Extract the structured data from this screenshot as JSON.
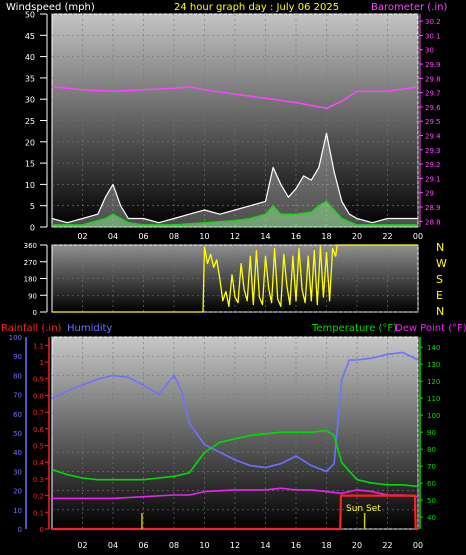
{
  "header": {
    "windspeed_label": "Windspeed (mph)",
    "title": "24 hour graph day : July 06 2025",
    "barometer_label": "Barometer (.in)"
  },
  "colors": {
    "axis_white": "#ffffff",
    "barometer": "#ff44ff",
    "wind": "#ffffff",
    "wind_avg": "#22cc22",
    "direction": "#ffff00",
    "rain": "#ff2020",
    "humidity": "#7070ff",
    "temperature": "#00dd00",
    "dewpoint": "#ee22ee",
    "title": "#ffff00"
  },
  "chart_data": [
    {
      "type": "line",
      "name": "wind-barometer",
      "title": "24 hour graph day : July 06 2025",
      "x_ticks": [
        "02",
        "04",
        "06",
        "08",
        "10",
        "12",
        "14",
        "16",
        "18",
        "20",
        "22",
        "00"
      ],
      "y_left": {
        "label": "Windspeed (mph)",
        "ticks": [
          "0",
          "5",
          "10",
          "15",
          "20",
          "25",
          "30",
          "35",
          "40",
          "45",
          "50"
        ],
        "range": [
          0,
          50
        ]
      },
      "y_right": {
        "label": "Barometer (.in)",
        "ticks": [
          "28.8",
          "28.9",
          "29",
          "29.1",
          "29.2",
          "29.3",
          "29.4",
          "29.5",
          "29.6",
          "29.7",
          "29.8",
          "29.9",
          "30",
          "30.1",
          "30.2"
        ],
        "range": [
          28.76,
          30.25
        ]
      },
      "barometer": {
        "hours": [
          0,
          2,
          4,
          6,
          8,
          9,
          10,
          12,
          14,
          16,
          17,
          18,
          19,
          20,
          22,
          24
        ],
        "values": [
          29.74,
          29.72,
          29.71,
          29.72,
          29.73,
          29.74,
          29.72,
          29.69,
          29.66,
          29.63,
          29.61,
          29.59,
          29.64,
          29.71,
          29.71,
          29.74
        ]
      },
      "wind_gust": {
        "hours": [
          0,
          1,
          2,
          3,
          3.5,
          4,
          4.5,
          5,
          6,
          7,
          8,
          9,
          10,
          11,
          12,
          13,
          14,
          14.5,
          15,
          15.5,
          16,
          16.5,
          17,
          17.5,
          18,
          18.5,
          19,
          19.5,
          20,
          21,
          22,
          23,
          24
        ],
        "values": [
          2,
          1,
          2,
          3,
          7,
          10,
          5,
          2,
          2,
          1,
          2,
          3,
          4,
          3,
          4,
          5,
          6,
          14,
          10,
          7,
          9,
          12,
          11,
          14,
          22,
          13,
          6,
          3,
          2,
          1,
          2,
          2,
          2
        ]
      },
      "wind_avg": {
        "hours": [
          0,
          2,
          3.5,
          4,
          5,
          6,
          8,
          10,
          12,
          13,
          14,
          14.5,
          15,
          16,
          17,
          17.5,
          18,
          18.5,
          19,
          20,
          21,
          22,
          24
        ],
        "values": [
          0.5,
          0.5,
          2,
          3,
          1,
          0.5,
          0.5,
          1,
          1.5,
          2,
          3,
          5,
          3,
          3,
          3.5,
          5,
          6,
          4,
          2,
          0.5,
          0.5,
          0.5,
          0.5
        ]
      }
    },
    {
      "type": "line",
      "name": "wind-direction",
      "y_left": {
        "ticks": [
          "0",
          "90",
          "180",
          "270",
          "360"
        ],
        "range": [
          0,
          360
        ]
      },
      "y_right_labels": [
        "N",
        "W",
        "S",
        "E",
        "N"
      ],
      "direction": {
        "hours": [
          0,
          9.9,
          10.0,
          10.2,
          10.4,
          10.6,
          10.8,
          11.0,
          11.2,
          11.4,
          11.6,
          11.8,
          12.0,
          12.2,
          12.4,
          12.6,
          12.8,
          13.0,
          13.2,
          13.4,
          13.6,
          13.8,
          14.0,
          14.2,
          14.4,
          14.6,
          14.8,
          15.0,
          15.2,
          15.4,
          15.6,
          15.8,
          16.0,
          16.2,
          16.4,
          16.6,
          16.8,
          17.0,
          17.2,
          17.4,
          17.6,
          17.8,
          18.0,
          18.2,
          18.4,
          18.6,
          18.7,
          24
        ],
        "values": [
          0,
          0,
          350,
          260,
          310,
          240,
          280,
          180,
          60,
          110,
          30,
          200,
          80,
          50,
          260,
          120,
          60,
          300,
          40,
          330,
          80,
          40,
          300,
          130,
          50,
          340,
          70,
          30,
          310,
          140,
          40,
          300,
          60,
          340,
          120,
          50,
          300,
          60,
          330,
          40,
          350,
          80,
          320,
          60,
          340,
          300,
          360,
          360
        ]
      }
    },
    {
      "type": "line",
      "name": "rain-humidity-temperature",
      "labels": {
        "rainfall": "Rainfall (.in)",
        "humidity": "Humidity",
        "temperature": "Temperature (°F)",
        "dewpoint": "Dew Point (°F)",
        "sunset": "Sun Set"
      },
      "x_ticks": [
        "02",
        "04",
        "06",
        "08",
        "10",
        "12",
        "14",
        "16",
        "18",
        "20",
        "22",
        "00"
      ],
      "y_humidity": {
        "ticks": [
          "0",
          "10",
          "20",
          "30",
          "40",
          "50",
          "60",
          "70",
          "80",
          "90",
          "100"
        ],
        "range": [
          0,
          100
        ]
      },
      "y_rain": {
        "ticks": [
          "0",
          "0.1",
          "0.2",
          "0.3",
          "0.4",
          "0.5",
          "0.6",
          "0.7",
          "0.8",
          "0.9",
          "1",
          "1.1"
        ],
        "range": [
          0,
          1.15
        ]
      },
      "y_temp": {
        "ticks": [
          "40",
          "50",
          "60",
          "70",
          "80",
          "90",
          "100",
          "110",
          "120",
          "130",
          "140"
        ],
        "range": [
          33,
          146
        ]
      },
      "humidity": {
        "hours": [
          0,
          1,
          2,
          3,
          4,
          5,
          6,
          7,
          8,
          8.5,
          9,
          10,
          11,
          12,
          13,
          14,
          15,
          16,
          17,
          18,
          18.5,
          19,
          19.5,
          20,
          21,
          22,
          23,
          24
        ],
        "values": [
          68,
          72,
          75,
          78,
          80,
          79,
          75,
          70,
          80,
          72,
          55,
          44,
          40,
          36,
          33,
          32,
          34,
          38,
          33,
          30,
          34,
          78,
          88,
          88,
          89,
          91,
          92,
          88
        ]
      },
      "temperature": {
        "hours": [
          0,
          1,
          2,
          3,
          4,
          5,
          6,
          7,
          8,
          9,
          10,
          11,
          12,
          13,
          14,
          15,
          16,
          17,
          18,
          18.5,
          19,
          20,
          21,
          22,
          23,
          24
        ],
        "values": [
          68,
          65,
          63,
          62,
          62,
          62,
          62,
          63,
          64,
          66,
          78,
          84,
          86,
          88,
          89,
          90,
          90,
          90,
          91,
          88,
          72,
          62,
          60,
          59,
          59,
          58
        ]
      },
      "dewpoint": {
        "hours": [
          0,
          2,
          4,
          6,
          8,
          9,
          10,
          12,
          14,
          15,
          16,
          17,
          18,
          19,
          20,
          21,
          22,
          23,
          24
        ],
        "values": [
          51,
          51,
          51,
          52,
          53,
          53,
          55,
          56,
          56,
          57,
          56,
          56,
          55,
          54,
          56,
          55,
          53,
          53,
          52
        ]
      },
      "rain": {
        "hours": [
          0,
          18.9,
          18.95,
          23.8,
          23.85,
          24
        ],
        "values": [
          0,
          0,
          0.2,
          0.2,
          0,
          0
        ]
      },
      "sun_markers": {
        "hours": [
          5.9,
          20.5
        ]
      }
    }
  ]
}
